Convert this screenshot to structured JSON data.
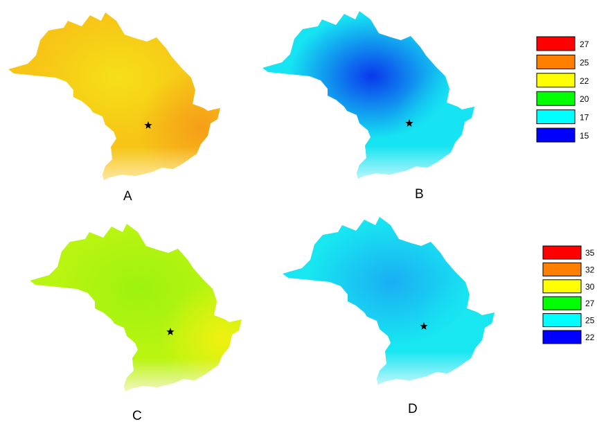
{
  "panels": [
    {
      "id": "A",
      "label": "A",
      "palette": "warm-yellow-orange",
      "colors": {
        "base": "#f7c516",
        "center": "#f5e018",
        "hot": "#f59a18",
        "edge": "#fde8a8"
      }
    },
    {
      "id": "B",
      "label": "B",
      "palette": "blue-cyan",
      "colors": {
        "base": "#16e4f2",
        "center": "#0a38ec",
        "hot": "#16e4f2",
        "edge": "#bff6fb"
      }
    },
    {
      "id": "C",
      "label": "C",
      "palette": "green-yellow",
      "colors": {
        "base": "#b8f510",
        "center": "#9ef20f",
        "hot": "#f7f010",
        "edge": "#f4f7c8"
      }
    },
    {
      "id": "D",
      "label": "D",
      "palette": "cyan",
      "colors": {
        "base": "#18e6f1",
        "center": "#1aaef3",
        "hot": "#18e6f1",
        "edge": "#c4f7fb"
      }
    }
  ],
  "marker": {
    "icon": "star-icon",
    "color": "#000000"
  },
  "legends": [
    {
      "id": "legend-top",
      "entries": [
        {
          "value": "27",
          "color": "#ff0000"
        },
        {
          "value": "25",
          "color": "#ff8000"
        },
        {
          "value": "22",
          "color": "#ffff00"
        },
        {
          "value": "20",
          "color": "#00ff00"
        },
        {
          "value": "17",
          "color": "#00ffff"
        },
        {
          "value": "15",
          "color": "#0000ff"
        }
      ]
    },
    {
      "id": "legend-bottom",
      "entries": [
        {
          "value": "35",
          "color": "#ff0000"
        },
        {
          "value": "32",
          "color": "#ff8000"
        },
        {
          "value": "30",
          "color": "#ffff00"
        },
        {
          "value": "27",
          "color": "#00ff00"
        },
        {
          "value": "25",
          "color": "#00ffff"
        },
        {
          "value": "22",
          "color": "#0000ff"
        }
      ]
    }
  ]
}
